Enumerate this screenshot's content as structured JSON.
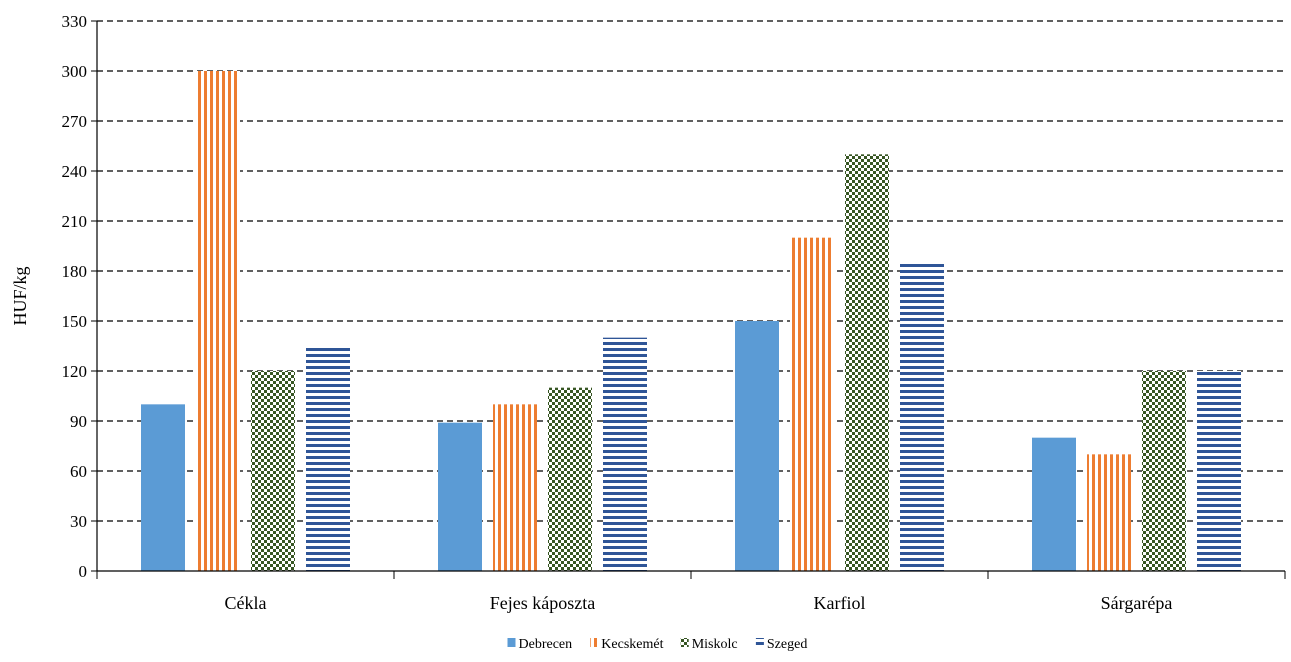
{
  "chart_data": {
    "type": "bar",
    "title": "",
    "xlabel": "",
    "ylabel": "HUF/kg",
    "ylim": [
      0,
      330
    ],
    "yticks": [
      0,
      30,
      60,
      90,
      120,
      150,
      180,
      210,
      240,
      270,
      300,
      330
    ],
    "grid": true,
    "legend_position": "bottom",
    "categories": [
      "Cékla",
      "Fejes káposzta",
      "Karfiol",
      "Sárgarépa"
    ],
    "series": [
      {
        "name": "Debrecen",
        "values": [
          100,
          89,
          150,
          80
        ],
        "color": "#5b9bd5",
        "pattern": "solid"
      },
      {
        "name": "Kecskemét",
        "values": [
          300,
          100,
          200,
          70
        ],
        "color": "#ed7d31",
        "pattern": "vertical-stripes"
      },
      {
        "name": "Miskolc",
        "values": [
          120,
          110,
          250,
          120
        ],
        "color": "#375623",
        "pattern": "checkerboard"
      },
      {
        "name": "Szeged",
        "values": [
          135,
          140,
          185,
          120
        ],
        "color": "#2f5597",
        "pattern": "horizontal-stripes"
      }
    ]
  }
}
